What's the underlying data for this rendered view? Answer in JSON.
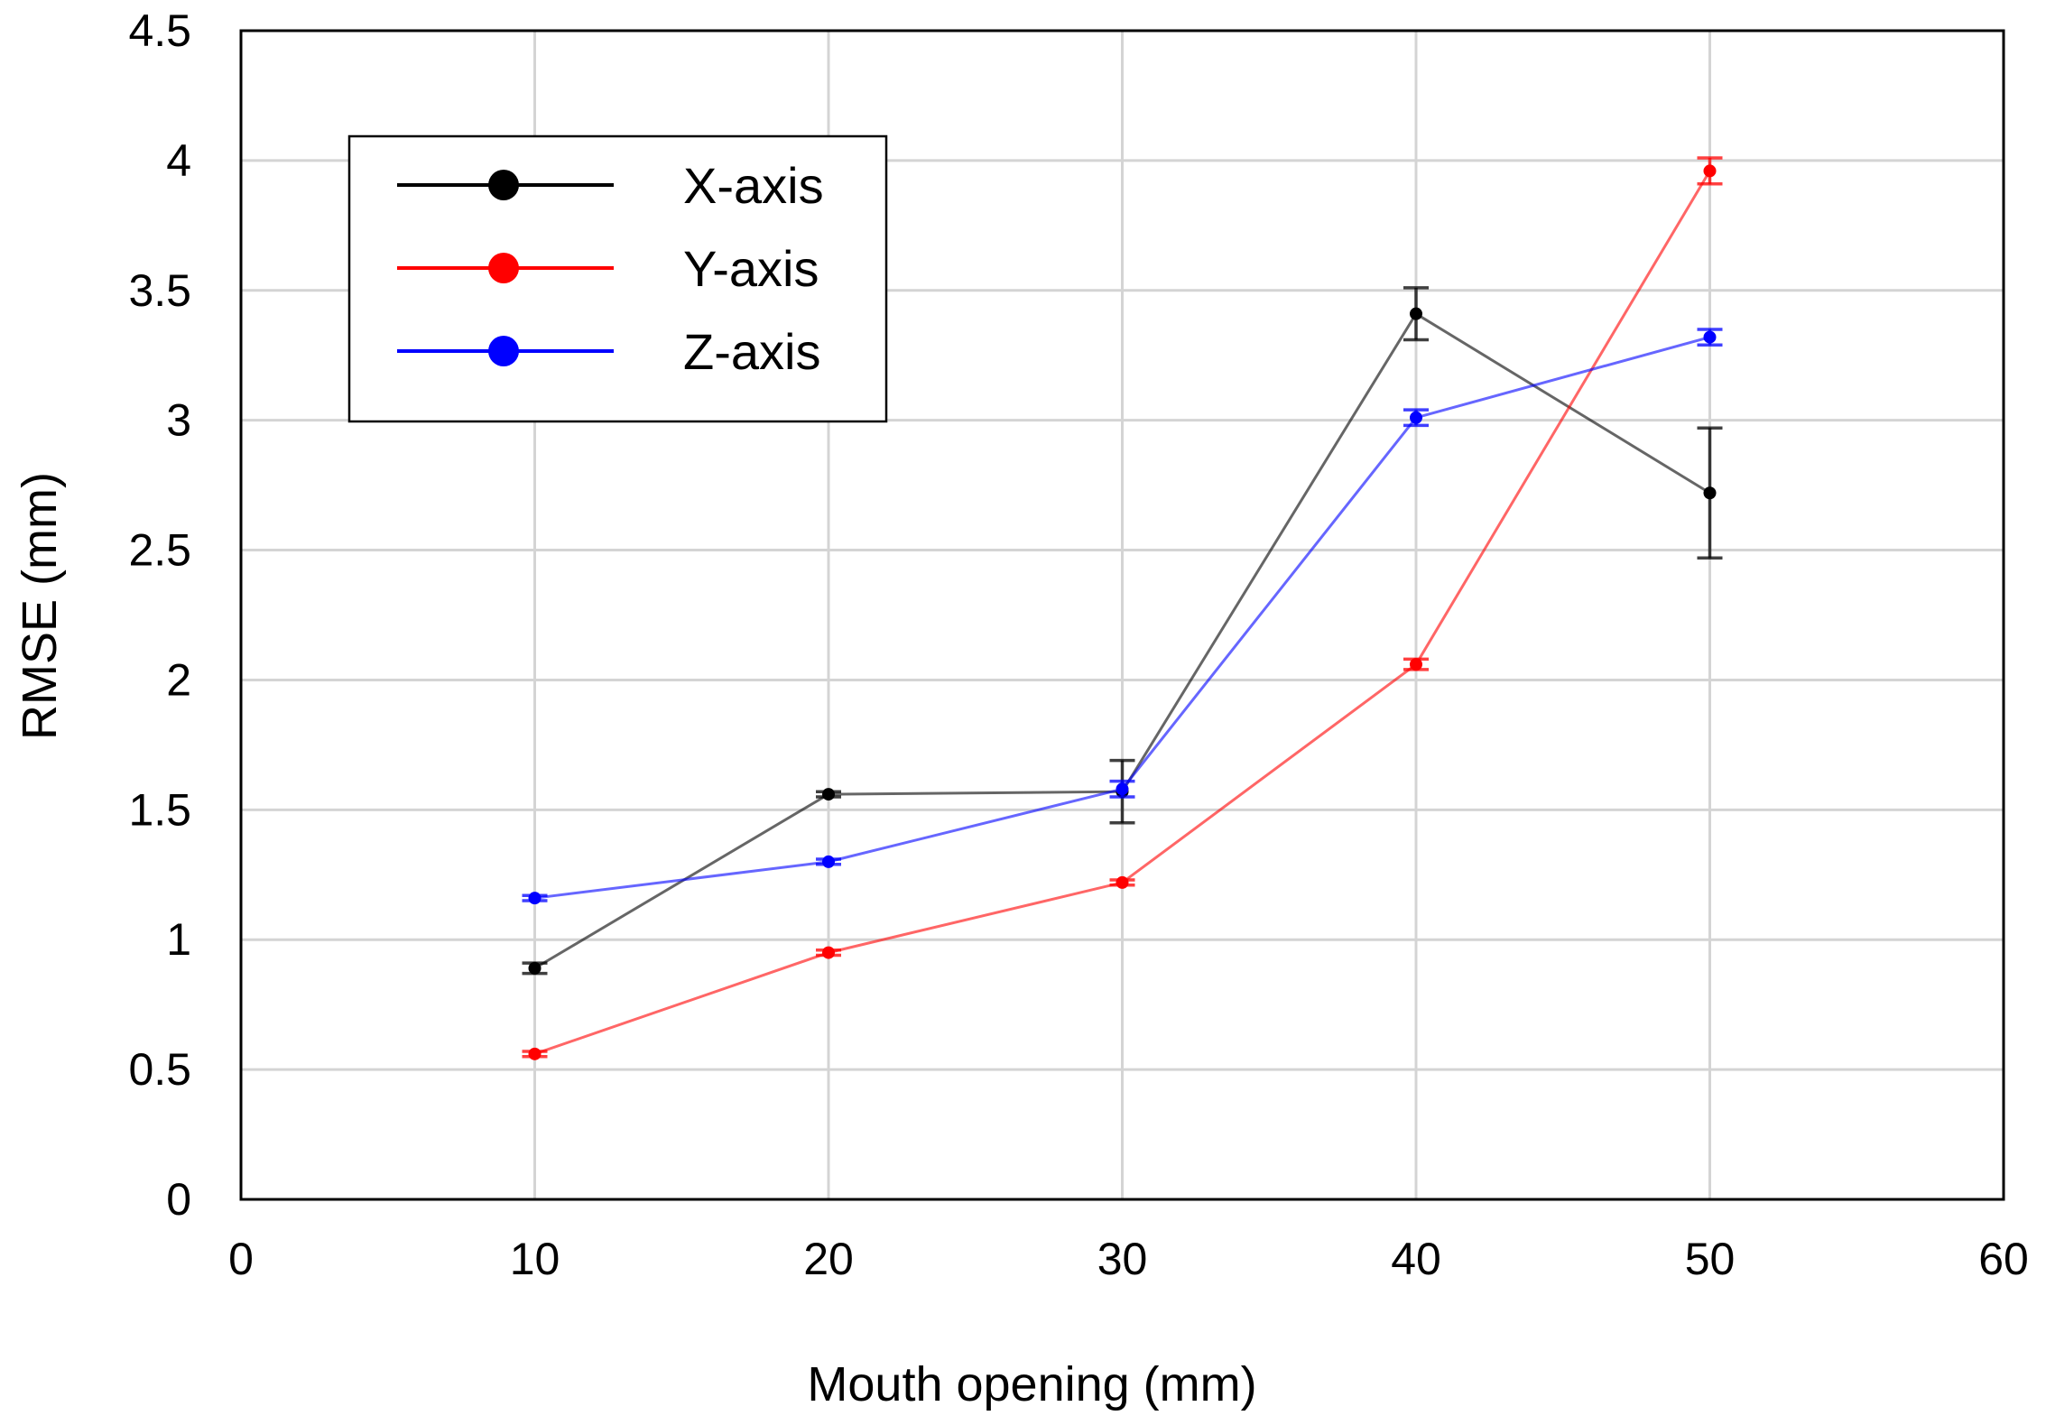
{
  "chart_data": {
    "type": "line",
    "title": "",
    "xlabel": "Mouth opening (mm)",
    "ylabel": "RMSE (mm)",
    "xlim": [
      0,
      60
    ],
    "ylim": [
      0,
      4.5
    ],
    "x_ticks": [
      "0",
      "10",
      "20",
      "30",
      "40",
      "50",
      "60"
    ],
    "x_tick_values": [
      0,
      10,
      20,
      30,
      40,
      50,
      60
    ],
    "y_ticks": [
      "0",
      "0.5",
      "1",
      "1.5",
      "2",
      "2.5",
      "3",
      "3.5",
      "4",
      "4.5"
    ],
    "y_tick_values": [
      0,
      0.5,
      1,
      1.5,
      2,
      2.5,
      3,
      3.5,
      4,
      4.5
    ],
    "grid": true,
    "legend_position": "top-left",
    "x": [
      10,
      20,
      30,
      40,
      50
    ],
    "series": [
      {
        "name": "X-axis",
        "color": "#000000",
        "values": [
          0.89,
          1.56,
          1.57,
          3.41,
          2.72
        ],
        "errors": [
          0.02,
          0.01,
          0.12,
          0.1,
          0.25
        ]
      },
      {
        "name": "Y-axis",
        "color": "#ff0000",
        "values": [
          0.56,
          0.95,
          1.22,
          2.06,
          3.96
        ],
        "errors": [
          0.01,
          0.01,
          0.01,
          0.02,
          0.05
        ]
      },
      {
        "name": "Z-axis",
        "color": "#0000ff",
        "values": [
          1.16,
          1.3,
          1.58,
          3.01,
          3.32
        ],
        "errors": [
          0.01,
          0.01,
          0.03,
          0.03,
          0.03
        ]
      }
    ]
  }
}
